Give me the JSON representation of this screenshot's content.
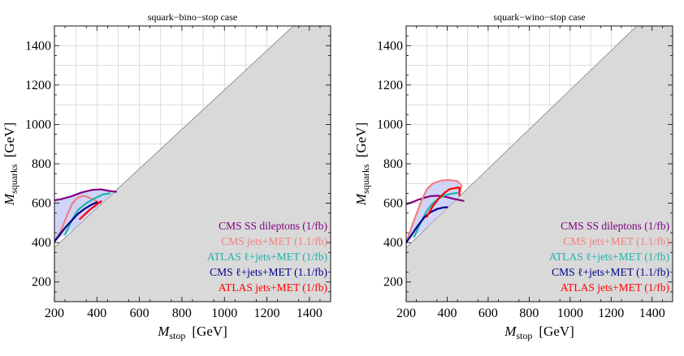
{
  "chart_data": [
    {
      "type": "line",
      "title": "squark−bino−stop case",
      "xlabel": {
        "main": "M",
        "sub": "stop",
        "unit": "[GeV]"
      },
      "ylabel": {
        "main": "M",
        "sub": "squarks",
        "unit": "[GeV]"
      },
      "xlim": [
        200,
        1500
      ],
      "ylim": [
        100,
        1500
      ],
      "xticks": [
        "200",
        "400",
        "600",
        "800",
        "1000",
        "1200",
        "1400"
      ],
      "yticks": [
        "200",
        "400",
        "600",
        "800",
        "1000",
        "1200",
        "1400"
      ],
      "grid": true,
      "excluded_region": {
        "description": "M_squarks < M_stop + 175",
        "fill": "#d9d9d9"
      },
      "shaded_region": {
        "fill": "#c8ccf5",
        "x": [
          200,
          230,
          280,
          330,
          380,
          420,
          460,
          490,
          480,
          400,
          300,
          200
        ],
        "y": [
          615,
          620,
          635,
          655,
          668,
          670,
          662,
          658,
          655,
          575,
          475,
          405
        ]
      },
      "legend_position": "bottom-right",
      "series": [
        {
          "name": "CMS SS dileptons (1/fb)",
          "color": "#800080",
          "x": [
            200,
            230,
            280,
            330,
            380,
            420,
            460,
            490
          ],
          "y": [
            615,
            620,
            635,
            655,
            668,
            670,
            662,
            658
          ]
        },
        {
          "name": "CMS jets+MET (1.1/fb)",
          "color": "#f08080",
          "x": [
            200,
            230,
            260,
            285,
            310,
            340,
            370,
            400,
            420
          ],
          "y": [
            405,
            460,
            540,
            600,
            628,
            638,
            625,
            610,
            600
          ]
        },
        {
          "name": "ATLAS ℓ+jets+MET (1/fb)",
          "color": "#20b2aa",
          "x": [
            250,
            280,
            310,
            350,
            390,
            430,
            460
          ],
          "y": [
            440,
            510,
            565,
            600,
            625,
            645,
            650
          ]
        },
        {
          "name": "CMS ℓ+jets+MET (1.1/fb)",
          "color": "#00008b",
          "x": [
            200,
            225,
            250,
            280,
            310,
            340,
            370,
            400
          ],
          "y": [
            405,
            440,
            475,
            510,
            545,
            570,
            590,
            605
          ]
        },
        {
          "name": "ATLAS jets+MET (1/fb)",
          "color": "#ff0000",
          "x": [
            320,
            345,
            370,
            395,
            420
          ],
          "y": [
            520,
            545,
            570,
            590,
            610
          ]
        }
      ]
    },
    {
      "type": "line",
      "title": "squark−wino−stop case",
      "xlabel": {
        "main": "M",
        "sub": "stop",
        "unit": "[GeV]"
      },
      "ylabel": {
        "main": "M",
        "sub": "squarks",
        "unit": "[GeV]"
      },
      "xlim": [
        200,
        1500
      ],
      "ylim": [
        100,
        1500
      ],
      "xticks": [
        "200",
        "400",
        "600",
        "800",
        "1000",
        "1200",
        "1400"
      ],
      "yticks": [
        "200",
        "400",
        "600",
        "800",
        "1000",
        "1200",
        "1400"
      ],
      "grid": true,
      "excluded_region": {
        "description": "M_squarks < M_stop + 175",
        "fill": "#d9d9d9"
      },
      "shaded_region": {
        "fill": "#c8ccf5",
        "x": [
          200,
          230,
          270,
          300,
          330,
          370,
          410,
          450,
          470,
          460,
          400,
          300,
          200
        ],
        "y": [
          400,
          490,
          600,
          670,
          700,
          715,
          718,
          712,
          665,
          635,
          575,
          475,
          400
        ]
      },
      "legend_position": "bottom-right",
      "series": [
        {
          "name": "CMS SS dileptons (1/fb)",
          "color": "#800080",
          "x": [
            200,
            230,
            260,
            290,
            320,
            350,
            380,
            410,
            440,
            480
          ],
          "y": [
            595,
            605,
            618,
            628,
            636,
            638,
            635,
            628,
            620,
            612
          ]
        },
        {
          "name": "CMS jets+MET (1.1/fb)",
          "color": "#f08080",
          "x": [
            200,
            230,
            270,
            300,
            330,
            370,
            410,
            450,
            470,
            465
          ],
          "y": [
            400,
            490,
            600,
            670,
            700,
            715,
            718,
            712,
            690,
            665
          ]
        },
        {
          "name": "ATLAS ℓ+jets+MET (1/fb)",
          "color": "#20b2aa",
          "x": [
            240,
            270,
            300,
            330,
            360,
            390,
            420,
            450
          ],
          "y": [
            430,
            500,
            560,
            600,
            625,
            640,
            648,
            652
          ]
        },
        {
          "name": "CMS ℓ+jets+MET (1.1/fb)",
          "color": "#00008b",
          "x": [
            200,
            230,
            260,
            290,
            320,
            350,
            380,
            400
          ],
          "y": [
            400,
            445,
            490,
            530,
            555,
            570,
            578,
            580
          ]
        },
        {
          "name": "ATLAS jets+MET (1/fb)",
          "color": "#ff0000",
          "x": [
            300,
            330,
            360,
            390,
            410,
            430,
            460,
            460
          ],
          "y": [
            530,
            585,
            625,
            655,
            670,
            675,
            680,
            640
          ]
        }
      ]
    }
  ]
}
